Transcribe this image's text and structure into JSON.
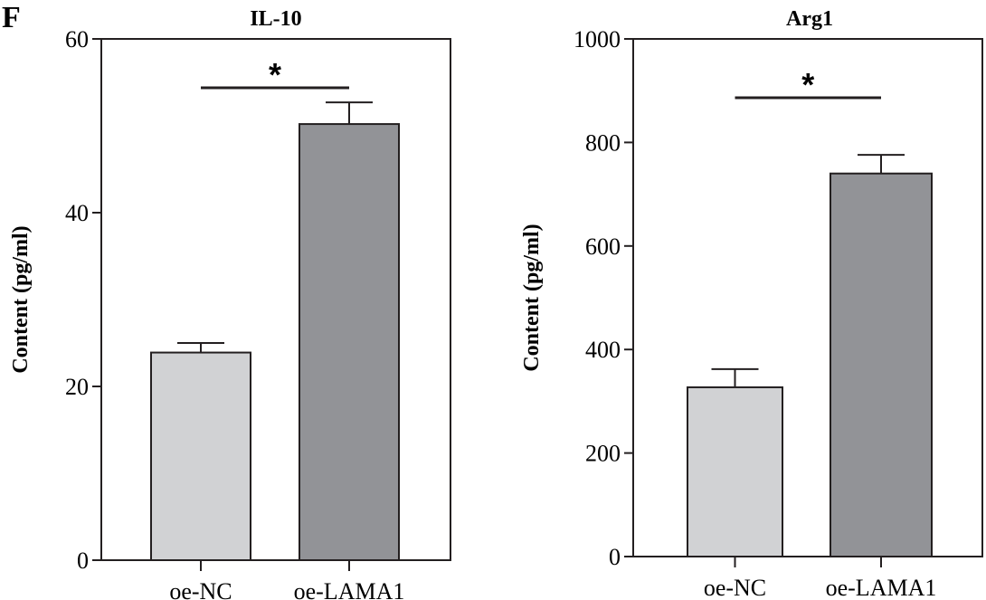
{
  "panel_label": "F",
  "chart_data": [
    {
      "type": "bar",
      "title": "IL-10",
      "ylabel": "Content (pg/ml)",
      "xlabel": "",
      "ylim": [
        0,
        60
      ],
      "yticks": [
        0,
        20,
        40,
        60
      ],
      "categories": [
        "oe-NC",
        "oe-LAMA1"
      ],
      "values": [
        23.9,
        50.2
      ],
      "errors": [
        1.1,
        2.5
      ],
      "colors": [
        "#d1d2d4",
        "#929397"
      ],
      "significance": {
        "between": [
          0,
          1
        ],
        "label": "*"
      },
      "grid": false
    },
    {
      "type": "bar",
      "title": "Arg1",
      "ylabel": "Content (pg/ml)",
      "xlabel": "",
      "ylim": [
        0,
        1000
      ],
      "yticks": [
        0,
        200,
        400,
        600,
        800,
        1000
      ],
      "categories": [
        "oe-NC",
        "oe-LAMA1"
      ],
      "values": [
        327,
        740
      ],
      "errors": [
        35,
        36
      ],
      "colors": [
        "#d1d2d4",
        "#929397"
      ],
      "significance": {
        "between": [
          0,
          1
        ],
        "label": "*"
      },
      "grid": false
    }
  ]
}
